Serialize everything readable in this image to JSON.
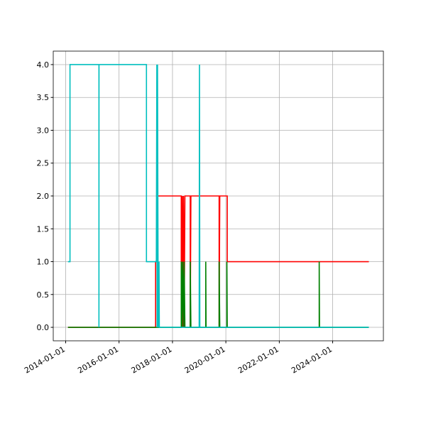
{
  "chart_data": {
    "type": "line",
    "xlim": [
      "2013-07-15",
      "2025-11-25"
    ],
    "xticks": [
      "2014-01-01",
      "2016-01-01",
      "2018-01-01",
      "2020-01-01",
      "2022-01-01",
      "2024-01-01"
    ],
    "ylim": [
      -0.205,
      4.205
    ],
    "yticks": [
      {
        "value": 0,
        "label": "0.0"
      },
      {
        "value": 0.5,
        "label": "0.5"
      },
      {
        "value": 1,
        "label": "1.0"
      },
      {
        "value": 1.5,
        "label": "1.5"
      },
      {
        "value": 2,
        "label": "2.0"
      },
      {
        "value": 2.5,
        "label": "2.5"
      },
      {
        "value": 3,
        "label": "3.0"
      },
      {
        "value": 3.5,
        "label": "3.5"
      },
      {
        "value": 4,
        "label": "4.0"
      }
    ],
    "grid": true,
    "series": [
      {
        "color": "#ff0000",
        "x": [
          "2014-02-01",
          "2017-05-15",
          "2017-05-15",
          "2017-06-01",
          "2017-06-01",
          "2018-05-01",
          "2018-05-01",
          "2018-05-15",
          "2018-05-20",
          "2018-06-01",
          "2018-06-10",
          "2018-06-20",
          "2018-09-01",
          "2018-09-01",
          "2018-09-10",
          "2019-10-01",
          "2019-10-01",
          "2019-10-10",
          "2020-01-20",
          "2020-01-20",
          "2025-05-10"
        ],
        "values": [
          0,
          0,
          1,
          1,
          2,
          2,
          0,
          2,
          0,
          2,
          0,
          2,
          2,
          0,
          2,
          2,
          0,
          2,
          2,
          1,
          1
        ]
      },
      {
        "color": "#008000",
        "x": [
          "2014-02-01",
          "2017-06-25",
          "2017-06-25",
          "2017-07-01",
          "2018-05-01",
          "2018-05-01",
          "2018-05-10",
          "2018-05-20",
          "2018-06-01",
          "2018-06-10",
          "2018-06-20",
          "2018-09-01",
          "2018-09-01",
          "2018-09-10",
          "2019-04-01",
          "2019-04-01",
          "2019-04-05",
          "2019-10-01",
          "2019-10-01",
          "2019-10-10",
          "2020-01-15",
          "2020-01-15",
          "2020-01-20",
          "2023-07-01",
          "2023-07-01",
          "2023-07-05",
          "2025-05-10"
        ],
        "values": [
          0,
          0,
          1,
          0,
          0,
          1,
          0,
          1,
          0,
          1,
          0,
          0,
          1,
          0,
          0,
          1,
          0,
          0,
          1,
          0,
          0,
          1,
          0,
          0,
          1,
          0,
          0
        ]
      },
      {
        "color": "#00bfbf",
        "x": [
          "2014-02-01",
          "2014-03-01",
          "2014-03-01",
          "2015-04-01",
          "2015-04-01",
          "2015-04-02",
          "2017-01-10",
          "2017-01-10",
          "2017-05-25",
          "2017-06-01",
          "2017-06-05",
          "2017-06-10",
          "2017-06-20",
          "2017-07-01",
          "2017-07-05",
          "2019-01-01",
          "2019-01-05",
          "2019-01-10",
          "2025-05-10"
        ],
        "values": [
          1,
          1,
          4,
          4,
          0,
          4,
          4,
          1,
          1,
          4,
          0,
          4,
          0,
          1,
          0,
          0,
          4,
          0,
          0
        ]
      }
    ]
  }
}
